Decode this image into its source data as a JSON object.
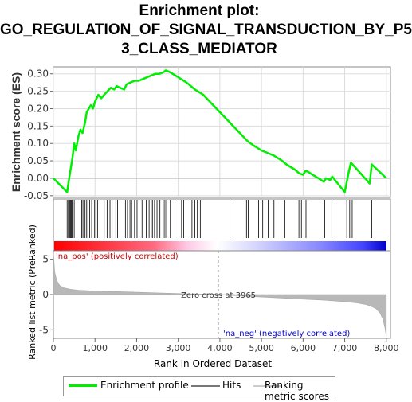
{
  "title_lines": [
    "Enrichment plot:",
    "GO_REGULATION_OF_SIGNAL_TRANSDUCTION_BY_P5",
    "3_CLASS_MEDIATOR"
  ],
  "colors": {
    "es": "#00ee00",
    "hits": "#000000",
    "metric": "#b8b8b8",
    "pos_label": "#cc0000",
    "neg_label": "#0000cc",
    "legend_metric": "#d0d0d0"
  },
  "legend": {
    "es": "Enrichment profile",
    "hits": "Hits",
    "metric": "Ranking metric scores"
  },
  "chart_data": {
    "type": "line",
    "title": "Enrichment plot: GO_REGULATION_OF_SIGNAL_TRANSDUCTION_BY_P53_CLASS_MEDIATOR",
    "xlabel": "Rank in Ordered Dataset",
    "ylabel_es": "Enrichment score (ES)",
    "ylabel_metric": "Ranked list metric (PreRanked)",
    "x_ticks": [
      "0",
      "1,000",
      "2,000",
      "3,000",
      "4,000",
      "5,000",
      "6,000",
      "7,000",
      "8,000"
    ],
    "x_tick_values": [
      0,
      1000,
      2000,
      3000,
      4000,
      5000,
      6000,
      7000,
      8000
    ],
    "es_y_ticks": [
      "-0.05",
      "0.00",
      "0.05",
      "0.10",
      "0.15",
      "0.20",
      "0.25",
      "0.30"
    ],
    "es_y_tick_values": [
      -0.05,
      0,
      0.05,
      0.1,
      0.15,
      0.2,
      0.25,
      0.3
    ],
    "es_ylim": [
      -0.055,
      0.32
    ],
    "metric_y_ticks": [
      "5",
      "0",
      "-5"
    ],
    "metric_y_tick_values": [
      5,
      0,
      -5
    ],
    "metric_ylim": [
      -6.2,
      6.2
    ],
    "xlim": [
      0,
      8100
    ],
    "n_genes": 8000,
    "zero_cross_label": "Zero cross at 3965",
    "zero_cross": 3965,
    "pos_label": "'na_pos' (positively correlated)",
    "neg_label": "'na_neg' (negatively correlated)",
    "es_profile": {
      "x": [
        0,
        330,
        380,
        420,
        460,
        500,
        540,
        600,
        650,
        700,
        760,
        800,
        850,
        900,
        950,
        1000,
        1080,
        1150,
        1220,
        1300,
        1380,
        1460,
        1520,
        1600,
        1700,
        1760,
        1850,
        1950,
        2050,
        2150,
        2250,
        2350,
        2450,
        2550,
        2650,
        2700,
        2800,
        3000,
        3200,
        3400,
        3600,
        3800,
        4000,
        4200,
        4400,
        4600,
        4680,
        4800,
        5000,
        5100,
        5300,
        5500,
        5600,
        5800,
        5900,
        6000,
        6050,
        6100,
        6500,
        6550,
        6650,
        6700,
        7000,
        7050,
        7100,
        7150,
        7600,
        7650,
        8000
      ],
      "y": [
        0.0,
        -0.04,
        0.0,
        0.03,
        0.06,
        0.1,
        0.08,
        0.12,
        0.14,
        0.13,
        0.16,
        0.19,
        0.2,
        0.21,
        0.2,
        0.22,
        0.24,
        0.23,
        0.24,
        0.25,
        0.26,
        0.255,
        0.265,
        0.26,
        0.255,
        0.27,
        0.275,
        0.28,
        0.28,
        0.285,
        0.29,
        0.295,
        0.3,
        0.3,
        0.305,
        0.31,
        0.305,
        0.29,
        0.275,
        0.255,
        0.24,
        0.215,
        0.19,
        0.165,
        0.14,
        0.115,
        0.105,
        0.095,
        0.08,
        0.075,
        0.065,
        0.05,
        0.04,
        0.025,
        0.015,
        0.01,
        0.02,
        0.02,
        -0.01,
        0.0,
        -0.005,
        0.005,
        -0.04,
        -0.01,
        0.02,
        0.045,
        -0.015,
        0.04,
        0.0
      ]
    },
    "hits": [
      330,
      360,
      390,
      410,
      430,
      450,
      470,
      500,
      640,
      680,
      710,
      760,
      800,
      830,
      870,
      920,
      990,
      1020,
      1060,
      1220,
      1290,
      1360,
      1410,
      1500,
      1540,
      1730,
      1780,
      1840,
      1880,
      1950,
      2010,
      2060,
      2130,
      2230,
      2300,
      2350,
      2380,
      2430,
      2490,
      2560,
      2640,
      2680,
      2720,
      2810,
      2920,
      3080,
      3130,
      3190,
      3330,
      3400,
      3460,
      3530,
      4240,
      4640,
      4680,
      4930,
      5030,
      5160,
      5300,
      5560,
      5900,
      5960,
      6020,
      6070,
      6520,
      6690,
      7050,
      7120,
      7180,
      7650
    ],
    "metric_curve": {
      "x": [
        0,
        30,
        80,
        150,
        250,
        400,
        600,
        1000,
        1500,
        2000,
        2500,
        3000,
        3500,
        3965,
        4500,
        5000,
        5500,
        6000,
        6500,
        7000,
        7300,
        7500,
        7650,
        7750,
        7850,
        7920,
        7970,
        8000
      ],
      "y": [
        6.0,
        3.2,
        2.0,
        1.3,
        0.95,
        0.75,
        0.62,
        0.5,
        0.42,
        0.33,
        0.24,
        0.15,
        0.07,
        0.0,
        -0.2,
        -0.35,
        -0.5,
        -0.65,
        -0.8,
        -1.0,
        -1.2,
        -1.4,
        -1.7,
        -2.0,
        -2.6,
        -3.5,
        -4.8,
        -6.0
      ]
    }
  }
}
